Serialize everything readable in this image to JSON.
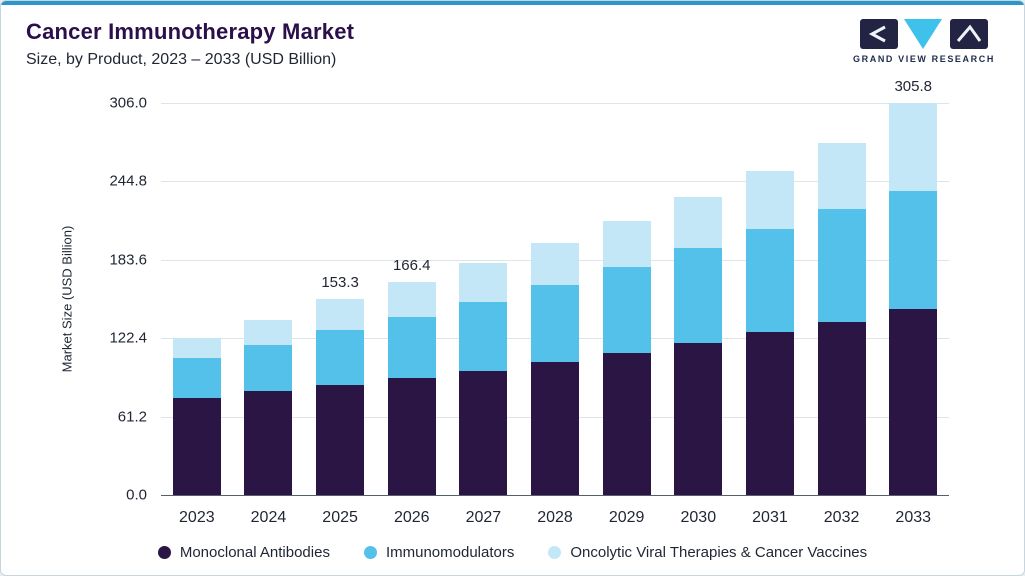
{
  "header": {
    "title": "Cancer Immunotherapy Market",
    "subtitle": "Size, by Product, 2023 – 2033 (USD Billion)",
    "logo_text": "GRAND VIEW RESEARCH",
    "title_color": "#2b0f4a",
    "accent_bar_color": "#2a96c9"
  },
  "chart_data": {
    "type": "bar",
    "stacked": true,
    "title": "Cancer Immunotherapy Market Size, by Product, 2023 – 2033 (USD Billion)",
    "xlabel": "",
    "ylabel": "Market Size (USD Billion)",
    "ylim": [
      0,
      306
    ],
    "grid": true,
    "legend_position": "bottom",
    "categories": [
      "2023",
      "2024",
      "2025",
      "2026",
      "2027",
      "2028",
      "2029",
      "2030",
      "2031",
      "2032",
      "2033"
    ],
    "yticks": [
      {
        "label": "306.0",
        "value": 306.0
      },
      {
        "label": "244.8",
        "value": 244.8
      },
      {
        "label": "183.6",
        "value": 183.6
      },
      {
        "label": "122.4",
        "value": 122.4
      },
      {
        "label": "61.2",
        "value": 61.2
      },
      {
        "label": "0.0",
        "value": 0.0
      }
    ],
    "series": [
      {
        "name": "Monoclonal Antibodies",
        "color": "#2a1545",
        "values": [
          76,
          81,
          86,
          91,
          97,
          104,
          111,
          119,
          127,
          135,
          145
        ]
      },
      {
        "name": "Immunomodulators",
        "color": "#53c1e9",
        "values": [
          31,
          36,
          43,
          48,
          54,
          60,
          67,
          74,
          81,
          88,
          92
        ]
      },
      {
        "name": "Oncolytic Viral Therapies & Cancer Vaccines",
        "color": "#c3e7f7",
        "values": [
          15.4,
          20,
          24.3,
          27.4,
          30,
          33,
          36,
          40,
          45,
          52,
          68.8
        ]
      }
    ],
    "totals": [
      122.4,
      137,
      153.3,
      166.4,
      181,
      197,
      214,
      233,
      253,
      275,
      305.8
    ],
    "value_labels": {
      "2025": "153.3",
      "2026": "166.4",
      "2033": "305.8"
    }
  }
}
